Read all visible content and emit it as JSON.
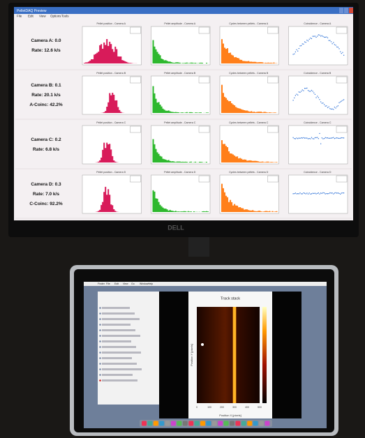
{
  "window": {
    "title": "PelletDAQ Preview",
    "menu": [
      "File",
      "Edit",
      "View",
      "Options",
      "Tools"
    ]
  },
  "rows": [
    {
      "labels": [
        "Camera A: 0.0",
        "Rate: 12.6 k/s"
      ],
      "plots": [
        "Pellet position - Camera A",
        "Pellet amplitude - Camera A",
        "Cycles between pellets - Camera A",
        "Coincidence - Camera A"
      ]
    },
    {
      "labels": [
        "Camera B: 0.1",
        "Rate: 20.1 k/s",
        "A-Coinc: 42.2%"
      ],
      "plots": [
        "Pellet position - Camera B",
        "Pellet amplitude - Camera B",
        "Cycles between pellets - Camera B",
        "Coincidence - Camera B"
      ]
    },
    {
      "labels": [
        "Camera C: 0.2",
        "Rate: 6.8 k/s"
      ],
      "plots": [
        "Pellet position - Camera C",
        "Pellet amplitude - Camera C",
        "Cycles between pellets - Camera C",
        "Coincidence - Camera C"
      ]
    },
    {
      "labels": [
        "Camera D: 0.3",
        "Rate: 7.0 k/s",
        "C-Coinc: 92.2%"
      ],
      "plots": [
        "Pellet position - Camera D",
        "Pellet amplitude - Camera D",
        "Cycles between pellets - Camera D",
        "Coincidence - Camera D"
      ]
    }
  ],
  "monitor_brand": "DELL",
  "laptop": {
    "menu": [
      "Finder",
      "File",
      "Edit",
      "View",
      "Go",
      "Window",
      "Help"
    ],
    "plot": {
      "title": "Track stack",
      "x_label": "Position X [pixels]",
      "y_label": "Position Y [pixels]",
      "xticks": [
        "0",
        "100",
        "200",
        "300",
        "400",
        "500"
      ]
    }
  }
}
